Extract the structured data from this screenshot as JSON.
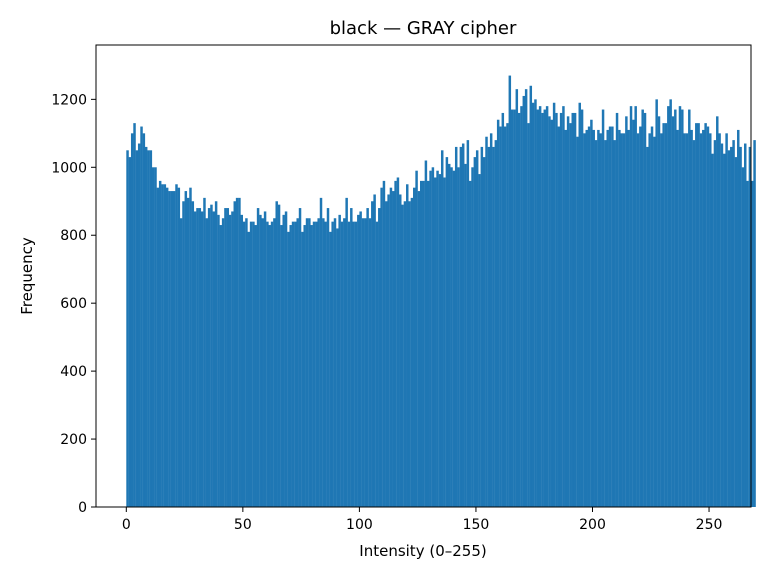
{
  "chart_data": {
    "type": "bar",
    "title": "black — GRAY cipher",
    "xlabel": "Intensity (0–255)",
    "ylabel": "Frequency",
    "xlim": [
      -13,
      268
    ],
    "ylim": [
      0,
      1360
    ],
    "xticks": [
      0,
      50,
      100,
      150,
      200,
      250
    ],
    "yticks": [
      0,
      200,
      400,
      600,
      800,
      1000,
      1200
    ],
    "bar_color": "#1f77b4",
    "bin_start": 0,
    "bin_width": 1,
    "grid": false,
    "legend": "none",
    "values": [
      1050,
      1030,
      1100,
      1130,
      1050,
      1070,
      1120,
      1100,
      1060,
      1050,
      1050,
      1000,
      1000,
      940,
      960,
      950,
      950,
      940,
      930,
      930,
      930,
      950,
      940,
      850,
      900,
      930,
      910,
      940,
      900,
      870,
      880,
      880,
      870,
      910,
      850,
      880,
      890,
      870,
      900,
      860,
      830,
      850,
      880,
      880,
      860,
      870,
      900,
      910,
      910,
      860,
      840,
      850,
      810,
      840,
      840,
      830,
      880,
      860,
      850,
      870,
      840,
      830,
      840,
      850,
      900,
      890,
      830,
      860,
      870,
      810,
      830,
      840,
      840,
      850,
      880,
      810,
      830,
      850,
      850,
      830,
      840,
      840,
      850,
      910,
      850,
      840,
      880,
      810,
      840,
      850,
      820,
      860,
      840,
      850,
      910,
      840,
      880,
      840,
      840,
      860,
      870,
      850,
      850,
      880,
      850,
      900,
      920,
      840,
      880,
      940,
      960,
      900,
      920,
      940,
      930,
      960,
      970,
      920,
      890,
      900,
      950,
      900,
      910,
      940,
      990,
      930,
      960,
      960,
      1020,
      960,
      990,
      1000,
      970,
      990,
      980,
      1050,
      970,
      1030,
      1010,
      1000,
      990,
      1060,
      1000,
      1060,
      1070,
      1010,
      1080,
      960,
      1000,
      1030,
      1050,
      980,
      1060,
      1030,
      1090,
      1060,
      1100,
      1060,
      1080,
      1140,
      1120,
      1160,
      1120,
      1130,
      1270,
      1170,
      1170,
      1230,
      1160,
      1180,
      1210,
      1230,
      1130,
      1240,
      1190,
      1200,
      1170,
      1180,
      1160,
      1170,
      1180,
      1150,
      1140,
      1190,
      1160,
      1120,
      1160,
      1180,
      1110,
      1150,
      1130,
      1160,
      1160,
      1090,
      1190,
      1170,
      1100,
      1110,
      1120,
      1140,
      1110,
      1080,
      1110,
      1100,
      1170,
      1080,
      1110,
      1120,
      1120,
      1080,
      1160,
      1110,
      1100,
      1100,
      1150,
      1110,
      1180,
      1140,
      1180,
      1100,
      1120,
      1170,
      1160,
      1060,
      1100,
      1120,
      1090,
      1200,
      1150,
      1100,
      1130,
      1130,
      1180,
      1200,
      1150,
      1170,
      1110,
      1180,
      1170,
      1100,
      1100,
      1170,
      1110,
      1080,
      1130,
      1130,
      1100,
      1110,
      1130,
      1120,
      1100,
      1040,
      1080,
      1150,
      1100,
      1070,
      1040,
      1100,
      1050,
      1060,
      1080,
      1030,
      1110,
      1060,
      1000,
      1070,
      960,
      1060,
      960,
      1080
    ],
    "ticks_length": 5
  }
}
